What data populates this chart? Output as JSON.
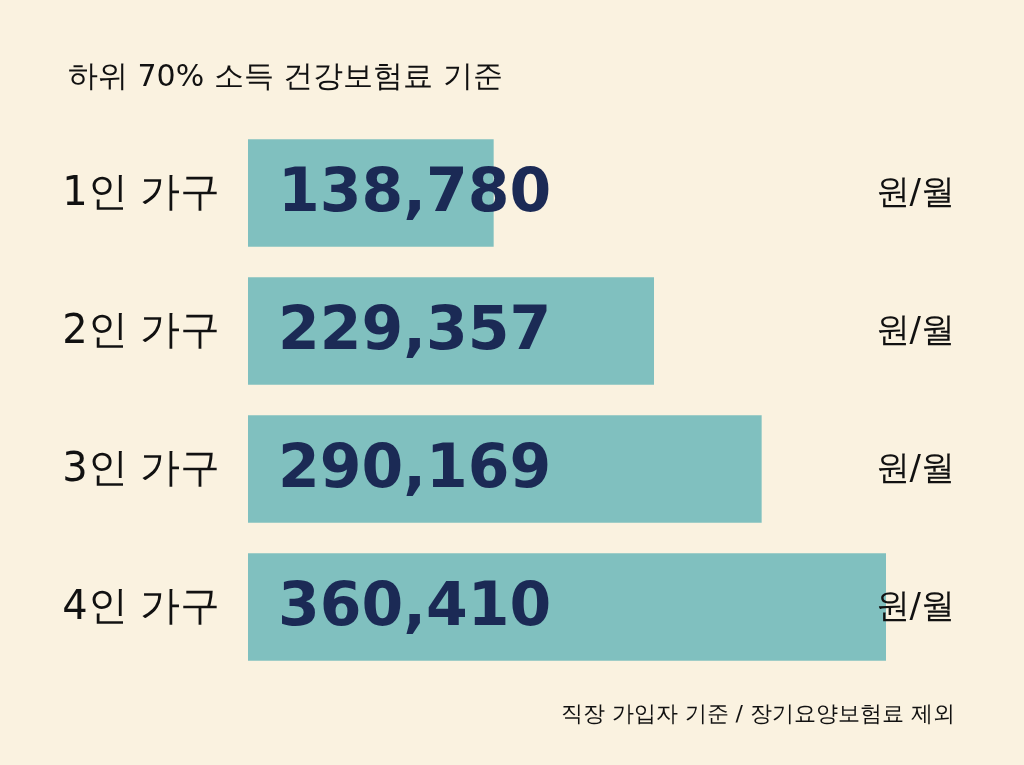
{
  "chart_data": {
    "type": "bar",
    "orientation": "horizontal",
    "title": "하위 70% 소득 건강보험료 기준",
    "categories": [
      "1인 가구",
      "2인 가구",
      "3인 가구",
      "4인 가구"
    ],
    "values": [
      138780,
      229357,
      290169,
      360410
    ],
    "color": "#80c0bf",
    "value_labels": [
      "138,780",
      "229,357",
      "290,169",
      "360,410"
    ],
    "tick_labels": "y",
    "annotations": [
      "원/월",
      "원/월",
      "원/월",
      "원/월",
      "직장 가입자 기준 / 장기요양보험료 제외"
    ]
  }
}
